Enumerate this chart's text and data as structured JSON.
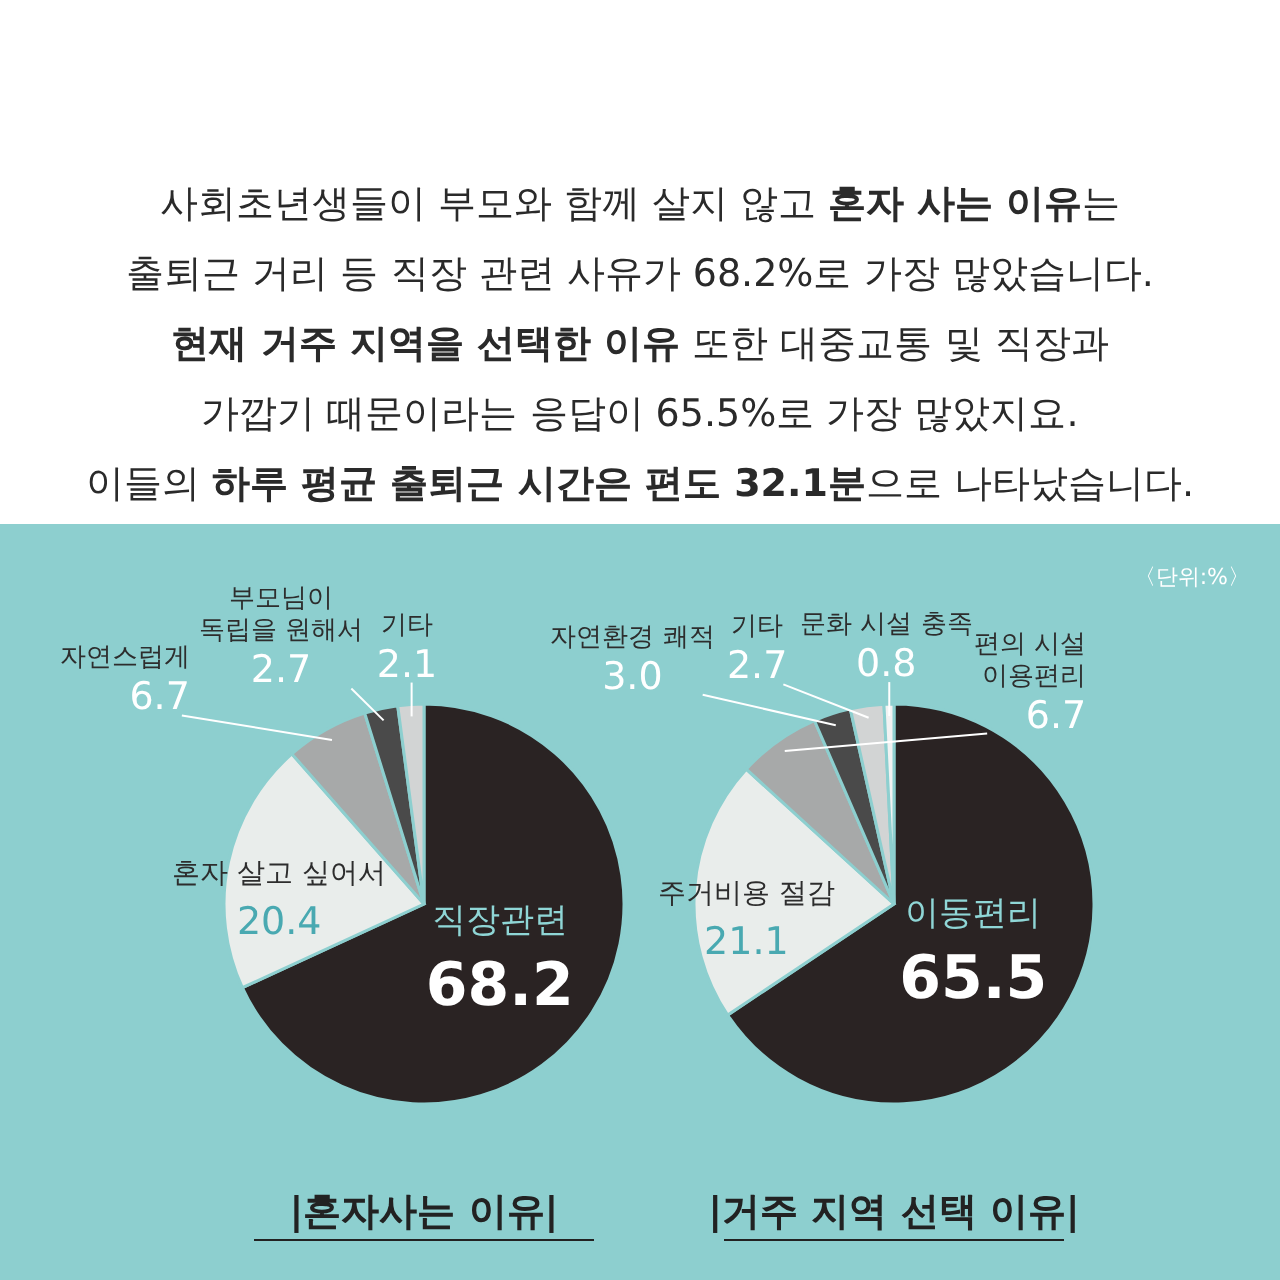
{
  "chart_data": [
    {
      "type": "other",
      "annotations": [
        "사회초년생들이 부모와 함께 살지 않고 **혼자 사는 이유**는",
        "출퇴근 거리 등 직장 관련 사유가 68.2%로 가장 많았습니다.",
        "**현재 거주 지역을 선택한 이유** 또한 대중교통 및 직장과",
        "가깝기 때문이라는 응답이 65.5%로 가장 많았지요.",
        "이들의 **하루 평균 출퇴근 시간은 편도 32.1분**으로 나타났습니다."
      ]
    },
    {
      "type": "pie",
      "title": "|혼자사는 이유|",
      "categories": [
        "직장관련",
        "혼자 살고 싶어서",
        "자연스럽게",
        "부모님이\n독립을 원해서",
        "기타"
      ],
      "values": [
        68.2,
        20.4,
        6.7,
        2.7,
        2.1
      ],
      "value_labels": [
        "68.2",
        "20.4",
        "6.7",
        "2.7",
        "2.1"
      ],
      "colors": [
        "#2a2323",
        "#e9edeb",
        "#a7a9a9",
        "#4a4a4a",
        "#d2d4d4"
      ]
    },
    {
      "type": "pie",
      "title": "|거주 지역 선택 이유|",
      "categories": [
        "이동편리",
        "주거비용 절감",
        "편의 시설\n이용편리",
        "자연환경 쾌적",
        "기타",
        "문화 시설 충족"
      ],
      "values": [
        65.5,
        21.1,
        6.7,
        3.0,
        2.7,
        0.8
      ],
      "value_labels": [
        "65.5",
        "21.1",
        "6.7",
        "3.0",
        "2.7",
        "0.8"
      ],
      "colors": [
        "#2a2323",
        "#e9edeb",
        "#a7a9a9",
        "#4a4a4a",
        "#d2d4d4",
        "#f2f2f2"
      ],
      "annotations": [
        "〈단위:%〉"
      ]
    }
  ]
}
